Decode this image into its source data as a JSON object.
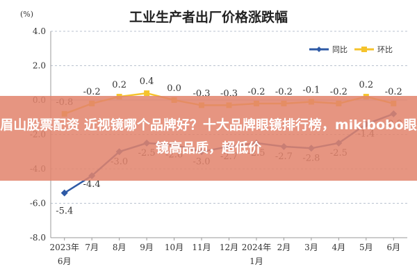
{
  "chart_data": {
    "type": "line",
    "title": "工业生产者出厂价格涨跌幅",
    "ylabel": "(%)",
    "xlabel": "",
    "ylim": [
      -8.0,
      4.0
    ],
    "yticks": [
      "4.0",
      "2.0",
      "0.0",
      "-2.0",
      "-4.0",
      "-6.0",
      "-8.0"
    ],
    "categories": [
      "2023年6月",
      "7月",
      "8月",
      "9月",
      "10月",
      "11月",
      "12月",
      "2024年1月",
      "2月",
      "3月",
      "4月",
      "5月",
      "6月"
    ],
    "x_tick_labels": [
      [
        "2023年",
        "6月"
      ],
      [
        "7月"
      ],
      [
        "8月"
      ],
      [
        "9月"
      ],
      [
        "10月"
      ],
      [
        "11月"
      ],
      [
        "12月"
      ],
      [
        "2024年",
        "1月"
      ],
      [
        "2月"
      ],
      [
        "3月"
      ],
      [
        "4月"
      ],
      [
        "5月"
      ],
      [
        "6月"
      ]
    ],
    "series": [
      {
        "name": "同比",
        "color": "#2e5aa6",
        "values": [
          -5.4,
          -4.4,
          -3.0,
          -2.5,
          -2.6,
          -3.0,
          -2.7,
          -2.5,
          -2.7,
          -2.8,
          -2.5,
          -1.4,
          -0.8
        ],
        "labels": [
          "-5.4",
          "-4.4",
          "-3.0",
          "-2.5",
          "-2.6",
          "-3.0",
          "-2.7",
          "-2.5",
          "-2.7",
          "-2.8",
          "-2.5",
          "-1.4",
          "-0.8"
        ]
      },
      {
        "name": "环比",
        "color": "#f5c32c",
        "values": [
          -0.8,
          -0.2,
          0.2,
          0.4,
          0.0,
          -0.3,
          -0.3,
          -0.2,
          -0.2,
          -0.1,
          -0.2,
          0.2,
          -0.2
        ],
        "labels": [
          "-0.8",
          "-0.2",
          "0.2",
          "0.4",
          "0.0",
          "-0.3",
          "-0.3",
          "-0.2",
          "-0.2",
          "-0.1",
          "-0.2",
          "0.2",
          "-0.2"
        ]
      }
    ],
    "grid": true,
    "legend_position": "top-right"
  },
  "banner": {
    "text": "眉山股票配资 近视镜哪个品牌好？十大品牌眼镜排行榜，mikibobo眼镜高品质，超低价",
    "color": "#e2846c"
  }
}
